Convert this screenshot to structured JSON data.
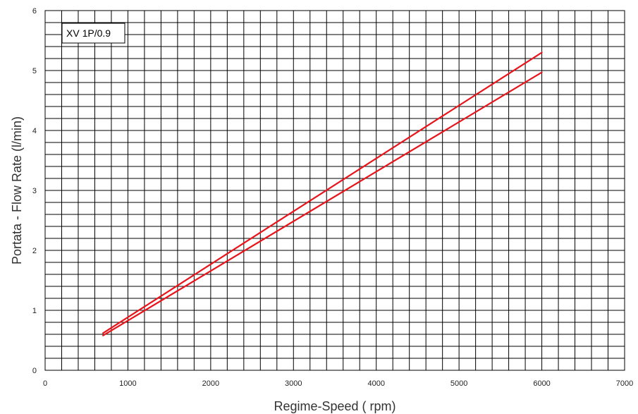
{
  "chart_data": {
    "type": "line",
    "xlabel": "Regime-Speed ( rpm)",
    "ylabel": "Portata - Flow Rate (l/min)",
    "xlim": [
      0,
      7000
    ],
    "ylim": [
      0,
      6
    ],
    "x_ticks": [
      "0",
      "1000",
      "2000",
      "3000",
      "4000",
      "5000",
      "6000",
      "7000"
    ],
    "y_ticks": [
      "0",
      "1",
      "2",
      "3",
      "4",
      "5",
      "6"
    ],
    "grid": true,
    "minor_x_step": 200,
    "minor_y_step": 0.2,
    "annotation": "XV 1P/0.9",
    "line_color": "#e8141b",
    "series": [
      {
        "x": [
          700,
          6000
        ],
        "y": [
          0.62,
          5.3
        ]
      },
      {
        "x": [
          700,
          6000
        ],
        "y": [
          0.58,
          4.97
        ]
      }
    ]
  }
}
